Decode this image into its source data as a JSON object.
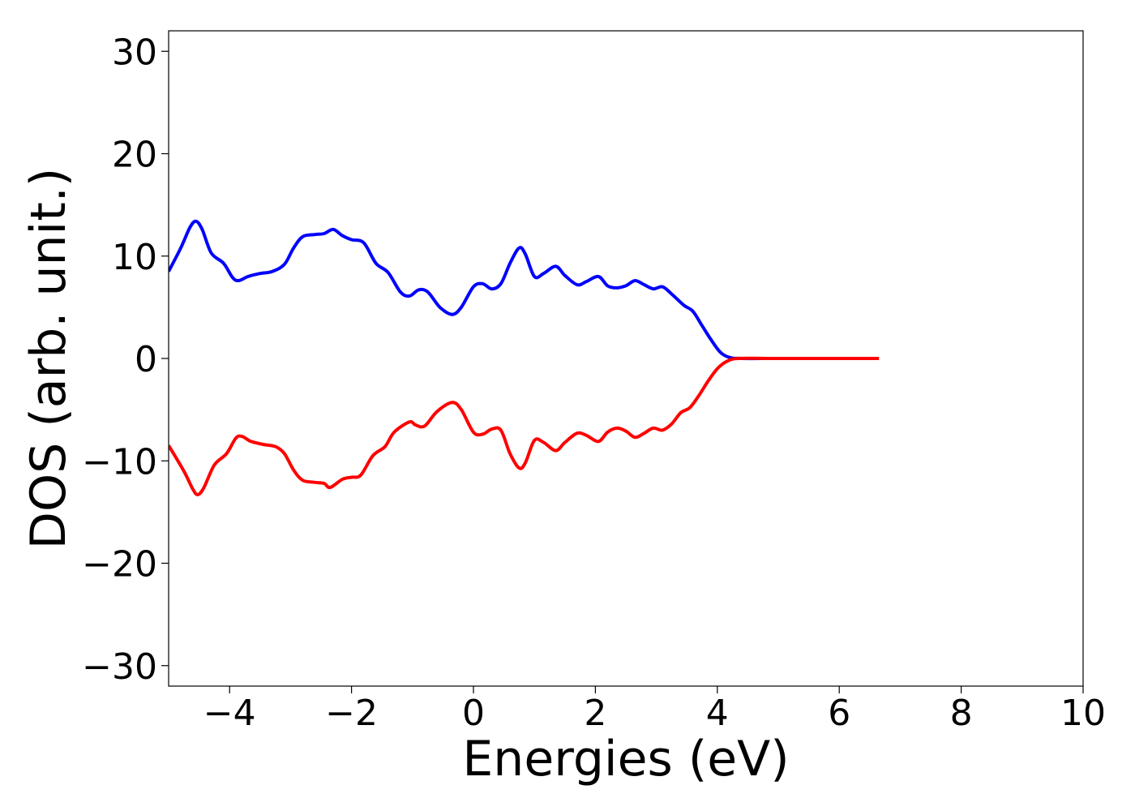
{
  "chart_data": {
    "type": "line",
    "title": "",
    "xlabel": "Energies (eV)",
    "ylabel": "DOS (arb. unit.)",
    "xlim": [
      -5.0,
      10.0
    ],
    "ylim": [
      -32,
      32
    ],
    "x_ticks": [
      -4,
      -2,
      0,
      2,
      4,
      6,
      8,
      10
    ],
    "y_ticks": [
      -30,
      -20,
      -10,
      0,
      10,
      20,
      30
    ],
    "x_tick_labels": [
      "−4",
      "−2",
      "0",
      "2",
      "4",
      "6",
      "8",
      "10"
    ],
    "y_tick_labels": [
      "−30",
      "−20",
      "−10",
      "0",
      "10",
      "20",
      "30"
    ],
    "grid": false,
    "legend": "none",
    "series": [
      {
        "color": "#0000ff",
        "points": [
          [
            -5.0,
            8.5
          ],
          [
            -4.8,
            10.8
          ],
          [
            -4.65,
            12.8
          ],
          [
            -4.55,
            13.4
          ],
          [
            -4.45,
            12.6
          ],
          [
            -4.3,
            10.3
          ],
          [
            -4.1,
            9.3
          ],
          [
            -3.95,
            7.9
          ],
          [
            -3.85,
            7.6
          ],
          [
            -3.7,
            8.0
          ],
          [
            -3.5,
            8.3
          ],
          [
            -3.3,
            8.5
          ],
          [
            -3.1,
            9.2
          ],
          [
            -2.95,
            10.8
          ],
          [
            -2.8,
            11.9
          ],
          [
            -2.6,
            12.1
          ],
          [
            -2.45,
            12.2
          ],
          [
            -2.3,
            12.6
          ],
          [
            -2.15,
            12.0
          ],
          [
            -2.0,
            11.6
          ],
          [
            -1.8,
            11.3
          ],
          [
            -1.6,
            9.3
          ],
          [
            -1.4,
            8.4
          ],
          [
            -1.2,
            6.5
          ],
          [
            -1.05,
            6.1
          ],
          [
            -0.9,
            6.7
          ],
          [
            -0.75,
            6.5
          ],
          [
            -0.55,
            5.0
          ],
          [
            -0.35,
            4.3
          ],
          [
            -0.2,
            5.0
          ],
          [
            0.0,
            7.0
          ],
          [
            0.15,
            7.3
          ],
          [
            0.3,
            6.8
          ],
          [
            0.45,
            7.3
          ],
          [
            0.6,
            9.3
          ],
          [
            0.75,
            10.8
          ],
          [
            0.85,
            10.2
          ],
          [
            1.0,
            8.0
          ],
          [
            1.15,
            8.3
          ],
          [
            1.35,
            9.0
          ],
          [
            1.5,
            8.1
          ],
          [
            1.7,
            7.2
          ],
          [
            1.85,
            7.5
          ],
          [
            2.05,
            8.0
          ],
          [
            2.2,
            7.1
          ],
          [
            2.35,
            6.9
          ],
          [
            2.5,
            7.1
          ],
          [
            2.65,
            7.6
          ],
          [
            2.8,
            7.2
          ],
          [
            2.95,
            6.8
          ],
          [
            3.1,
            7.0
          ],
          [
            3.25,
            6.3
          ],
          [
            3.45,
            5.2
          ],
          [
            3.6,
            4.6
          ],
          [
            3.75,
            3.2
          ],
          [
            3.9,
            1.8
          ],
          [
            4.05,
            0.6
          ],
          [
            4.2,
            0.1
          ],
          [
            4.4,
            0.0
          ],
          [
            5.0,
            0.0
          ],
          [
            6.0,
            0.0
          ],
          [
            6.65,
            0.0
          ]
        ]
      },
      {
        "color": "#ff0000",
        "points": [
          [
            -5.0,
            -8.5
          ],
          [
            -4.75,
            -11.0
          ],
          [
            -4.6,
            -12.8
          ],
          [
            -4.52,
            -13.3
          ],
          [
            -4.42,
            -12.6
          ],
          [
            -4.25,
            -10.4
          ],
          [
            -4.05,
            -9.3
          ],
          [
            -3.9,
            -7.8
          ],
          [
            -3.8,
            -7.6
          ],
          [
            -3.65,
            -8.1
          ],
          [
            -3.45,
            -8.4
          ],
          [
            -3.25,
            -8.6
          ],
          [
            -3.1,
            -9.3
          ],
          [
            -2.95,
            -10.9
          ],
          [
            -2.8,
            -11.9
          ],
          [
            -2.6,
            -12.1
          ],
          [
            -2.45,
            -12.2
          ],
          [
            -2.35,
            -12.6
          ],
          [
            -2.15,
            -11.8
          ],
          [
            -2.0,
            -11.6
          ],
          [
            -1.85,
            -11.4
          ],
          [
            -1.65,
            -9.5
          ],
          [
            -1.45,
            -8.6
          ],
          [
            -1.3,
            -7.2
          ],
          [
            -1.05,
            -6.2
          ],
          [
            -0.95,
            -6.5
          ],
          [
            -0.8,
            -6.6
          ],
          [
            -0.6,
            -5.2
          ],
          [
            -0.35,
            -4.3
          ],
          [
            -0.2,
            -5.0
          ],
          [
            0.0,
            -7.2
          ],
          [
            0.15,
            -7.4
          ],
          [
            0.3,
            -6.9
          ],
          [
            0.45,
            -7.0
          ],
          [
            0.6,
            -9.3
          ],
          [
            0.75,
            -10.7
          ],
          [
            0.85,
            -10.2
          ],
          [
            1.0,
            -8.0
          ],
          [
            1.15,
            -8.2
          ],
          [
            1.35,
            -9.0
          ],
          [
            1.5,
            -8.2
          ],
          [
            1.7,
            -7.3
          ],
          [
            1.85,
            -7.5
          ],
          [
            2.05,
            -8.1
          ],
          [
            2.2,
            -7.2
          ],
          [
            2.35,
            -6.8
          ],
          [
            2.5,
            -7.1
          ],
          [
            2.65,
            -7.7
          ],
          [
            2.8,
            -7.3
          ],
          [
            2.95,
            -6.8
          ],
          [
            3.1,
            -7.0
          ],
          [
            3.25,
            -6.4
          ],
          [
            3.4,
            -5.3
          ],
          [
            3.55,
            -4.8
          ],
          [
            3.7,
            -3.6
          ],
          [
            3.85,
            -2.2
          ],
          [
            4.0,
            -1.0
          ],
          [
            4.15,
            -0.3
          ],
          [
            4.35,
            0.0
          ],
          [
            5.0,
            0.0
          ],
          [
            6.0,
            0.0
          ],
          [
            6.65,
            0.0
          ]
        ]
      }
    ]
  }
}
